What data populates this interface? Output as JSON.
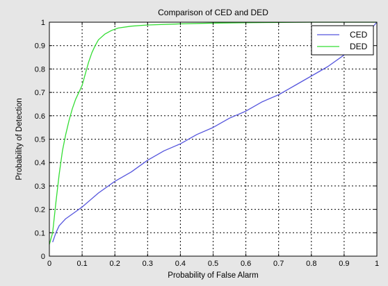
{
  "chart_data": {
    "type": "line",
    "title": "Comparison of CED and DED",
    "xlabel": "Probability of False Alarm",
    "ylabel": "Probability of Detection",
    "xlim": [
      0,
      1
    ],
    "ylim": [
      0,
      1
    ],
    "xticks": [
      0,
      0.1,
      0.2,
      0.3,
      0.4,
      0.5,
      0.6,
      0.7,
      0.8,
      0.9,
      1
    ],
    "yticks": [
      0,
      0.1,
      0.2,
      0.3,
      0.4,
      0.5,
      0.6,
      0.7,
      0.8,
      0.9,
      1
    ],
    "xtick_labels": [
      "0",
      "0.1",
      "0.2",
      "0.3",
      "0.4",
      "0.5",
      "0.6",
      "0.7",
      "0.8",
      "0.9",
      "1"
    ],
    "ytick_labels": [
      "0",
      "0.1",
      "0.2",
      "0.3",
      "0.4",
      "0.5",
      "0.6",
      "0.7",
      "0.8",
      "0.9",
      "1"
    ],
    "grid": true,
    "legend_position": "top-right",
    "series": [
      {
        "name": "CED",
        "color": "#5555dd",
        "points": [
          [
            0.01,
            0.06
          ],
          [
            0.02,
            0.1
          ],
          [
            0.03,
            0.13
          ],
          [
            0.05,
            0.16
          ],
          [
            0.08,
            0.19
          ],
          [
            0.1,
            0.21
          ],
          [
            0.15,
            0.27
          ],
          [
            0.2,
            0.32
          ],
          [
            0.25,
            0.36
          ],
          [
            0.3,
            0.41
          ],
          [
            0.35,
            0.45
          ],
          [
            0.4,
            0.48
          ],
          [
            0.45,
            0.52
          ],
          [
            0.5,
            0.55
          ],
          [
            0.55,
            0.59
          ],
          [
            0.6,
            0.62
          ],
          [
            0.65,
            0.66
          ],
          [
            0.7,
            0.69
          ],
          [
            0.75,
            0.73
          ],
          [
            0.8,
            0.77
          ],
          [
            0.85,
            0.81
          ],
          [
            0.9,
            0.86
          ],
          [
            0.95,
            0.92
          ],
          [
            1.0,
            1.0
          ]
        ]
      },
      {
        "name": "DED",
        "color": "#33dd33",
        "points": [
          [
            0.0,
            0.05
          ],
          [
            0.01,
            0.1
          ],
          [
            0.02,
            0.23
          ],
          [
            0.03,
            0.35
          ],
          [
            0.04,
            0.45
          ],
          [
            0.05,
            0.52
          ],
          [
            0.06,
            0.58
          ],
          [
            0.07,
            0.63
          ],
          [
            0.08,
            0.67
          ],
          [
            0.09,
            0.7
          ],
          [
            0.1,
            0.73
          ],
          [
            0.11,
            0.78
          ],
          [
            0.12,
            0.83
          ],
          [
            0.13,
            0.87
          ],
          [
            0.14,
            0.9
          ],
          [
            0.15,
            0.925
          ],
          [
            0.17,
            0.95
          ],
          [
            0.19,
            0.965
          ],
          [
            0.21,
            0.975
          ],
          [
            0.25,
            0.983
          ],
          [
            0.3,
            0.988
          ],
          [
            0.4,
            0.993
          ],
          [
            0.5,
            0.996
          ],
          [
            0.6,
            0.998
          ],
          [
            0.7,
            0.999
          ],
          [
            0.8,
            1.0
          ],
          [
            1.0,
            1.0
          ]
        ]
      }
    ]
  }
}
